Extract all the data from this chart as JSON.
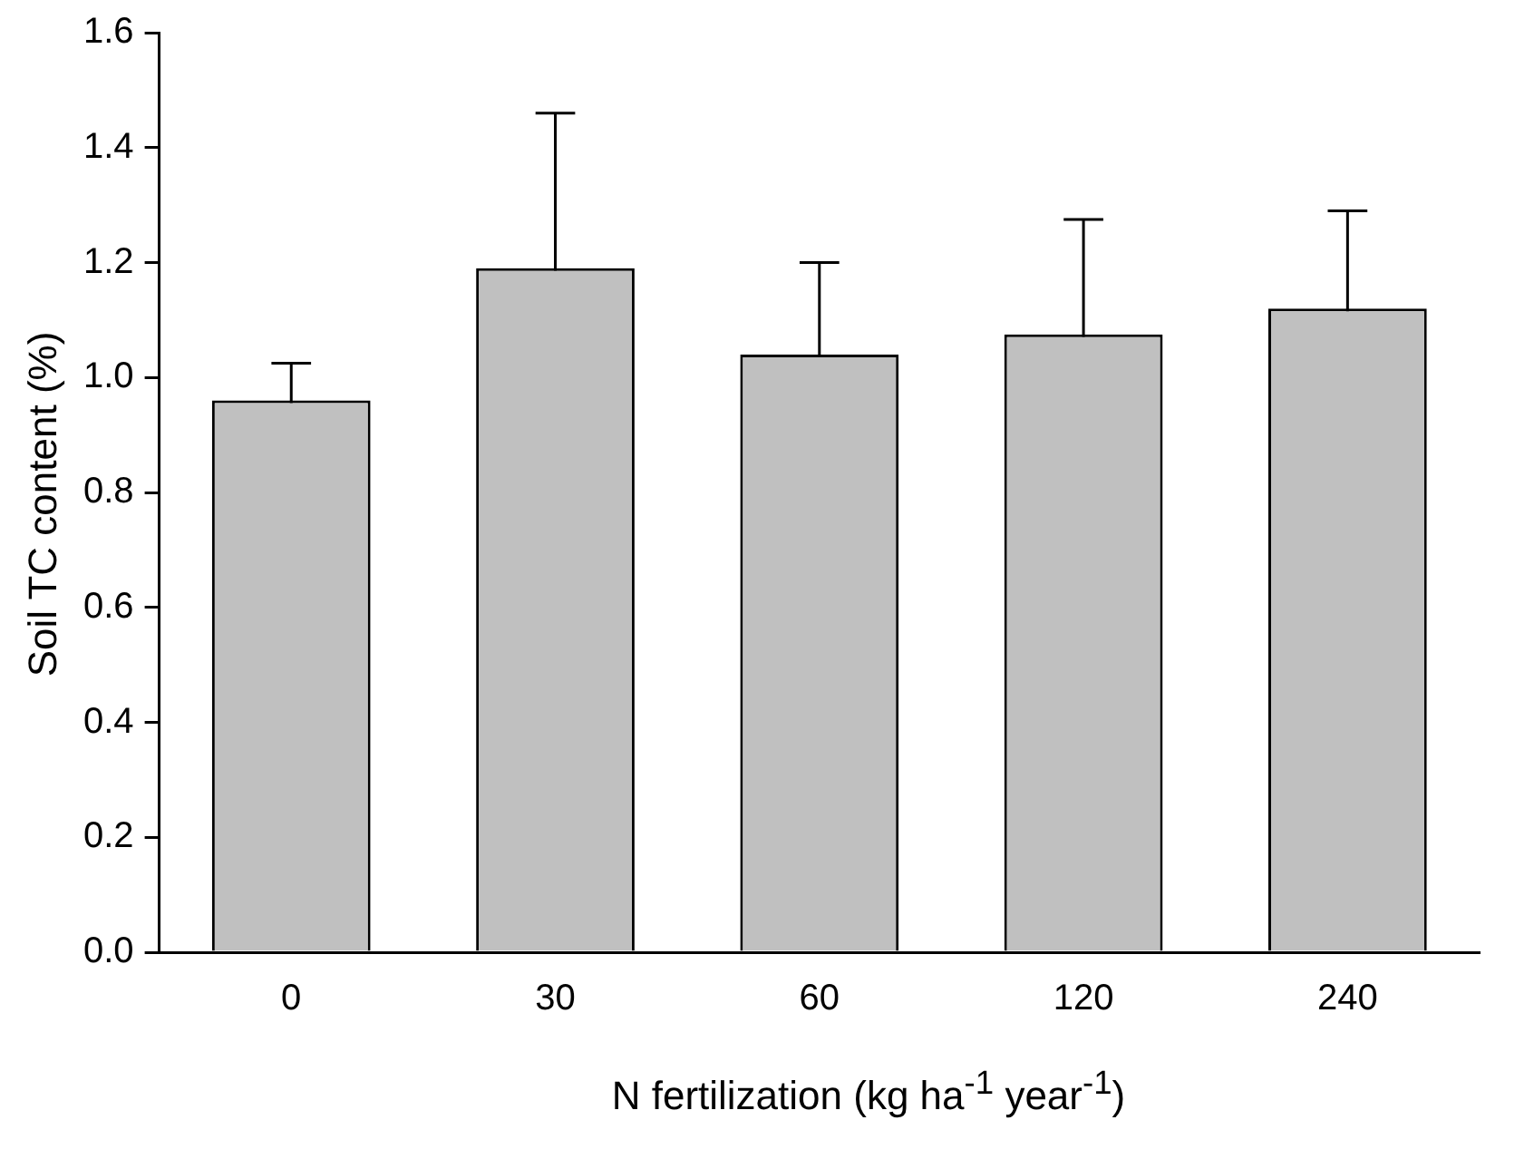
{
  "chart_data": {
    "type": "bar",
    "xlabel": "N fertilization (kg ha$^{-1}$ year$^{-1}$)",
    "ylabel": "Soil TC content (%)",
    "categories": [
      "0",
      "30",
      "60",
      "120",
      "240"
    ],
    "values": [
      0.96,
      1.19,
      1.04,
      1.075,
      1.12
    ],
    "errors": [
      0.065,
      0.27,
      0.16,
      0.2,
      0.17
    ],
    "color": "#c0c0c0",
    "ylim": [
      0,
      1.6
    ],
    "yticks": [
      {
        "value": 0,
        "label": "0.0"
      },
      0.2,
      0.4,
      0.6,
      0.8,
      {
        "value": 1,
        "label": "1.0"
      },
      1.2,
      1.4,
      1.6
    ],
    "grid": false,
    "legend": false
  }
}
